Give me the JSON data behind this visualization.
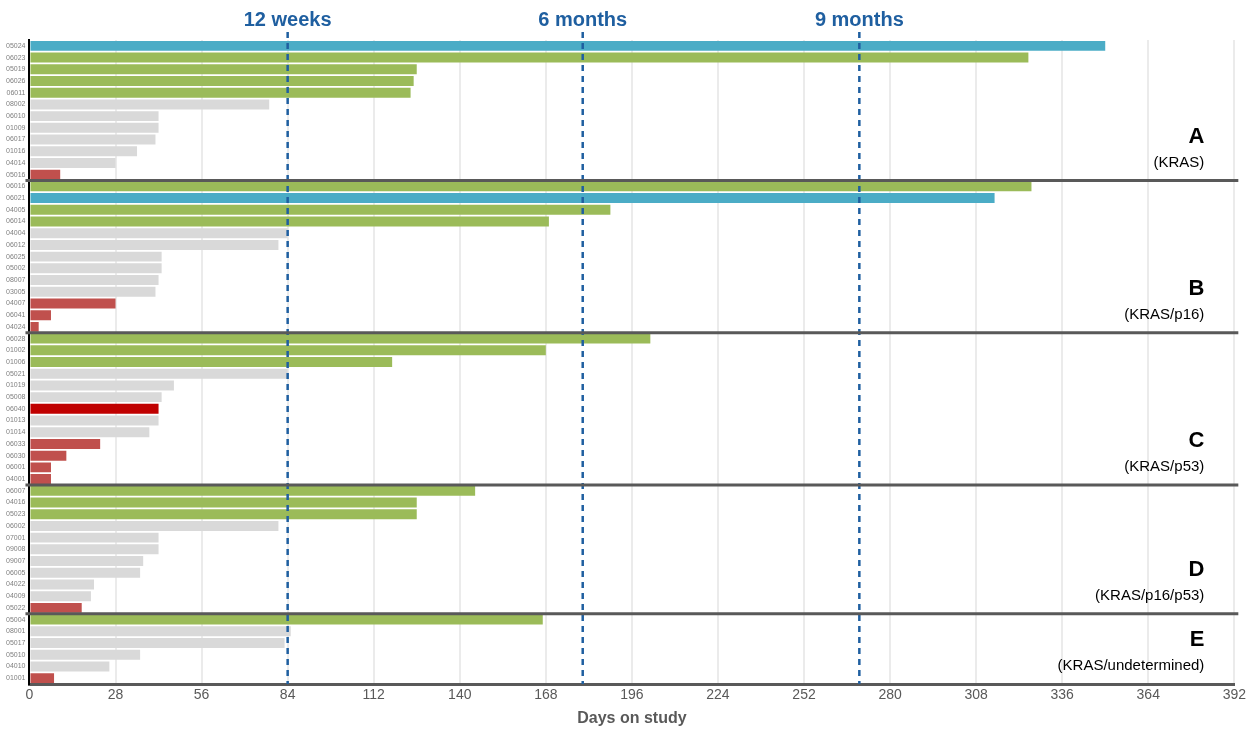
{
  "chart_data": {
    "type": "bar",
    "orientation": "horizontal",
    "xlabel": "Days on study",
    "categories": [
      "05024",
      "06023",
      "05019",
      "06026",
      "06011",
      "08002",
      "06010",
      "01009",
      "06017",
      "01016",
      "04014",
      "05016",
      "06016",
      "06021",
      "04005",
      "06014",
      "04004",
      "06012",
      "06025",
      "05002",
      "08007",
      "03005",
      "04007",
      "06041",
      "04024",
      "06028",
      "01002",
      "01006",
      "05021",
      "01019",
      "05008",
      "06040",
      "01013",
      "01014",
      "06033",
      "06030",
      "06001",
      "04001",
      "06007",
      "04016",
      "05023",
      "06002",
      "07001",
      "09008",
      "09007",
      "06005",
      "04022",
      "04009",
      "05022",
      "05004",
      "08001",
      "05017",
      "05010",
      "04010",
      "01001"
    ],
    "values": [
      350,
      325,
      126,
      125,
      124,
      78,
      42,
      42,
      41,
      35,
      28,
      10,
      326,
      314,
      189,
      169,
      84,
      81,
      43,
      43,
      42,
      41,
      28,
      7,
      3,
      202,
      168,
      118,
      84,
      47,
      43,
      42,
      42,
      39,
      23,
      12,
      7,
      7,
      145,
      126,
      126,
      81,
      42,
      42,
      37,
      36,
      21,
      20,
      17,
      167,
      85,
      83,
      36,
      26,
      8
    ],
    "colors": [
      "#4bacc6",
      "#9bbb59",
      "#9bbb59",
      "#9bbb59",
      "#9bbb59",
      "#d9d9d9",
      "#d9d9d9",
      "#d9d9d9",
      "#d9d9d9",
      "#d9d9d9",
      "#d9d9d9",
      "#c0504d",
      "#9bbb59",
      "#4bacc6",
      "#9bbb59",
      "#9bbb59",
      "#d9d9d9",
      "#d9d9d9",
      "#d9d9d9",
      "#d9d9d9",
      "#d9d9d9",
      "#d9d9d9",
      "#c0504d",
      "#c0504d",
      "#c0504d",
      "#9bbb59",
      "#9bbb59",
      "#9bbb59",
      "#d9d9d9",
      "#d9d9d9",
      "#d9d9d9",
      "#c00000",
      "#d9d9d9",
      "#d9d9d9",
      "#c0504d",
      "#c0504d",
      "#c0504d",
      "#c0504d",
      "#9bbb59",
      "#9bbb59",
      "#9bbb59",
      "#d9d9d9",
      "#d9d9d9",
      "#d9d9d9",
      "#d9d9d9",
      "#d9d9d9",
      "#d9d9d9",
      "#d9d9d9",
      "#c0504d",
      "#9bbb59",
      "#d9d9d9",
      "#d9d9d9",
      "#d9d9d9",
      "#d9d9d9",
      "#c0504d"
    ],
    "xlim": [
      0,
      392
    ],
    "xticks": [
      0,
      28,
      56,
      84,
      112,
      140,
      168,
      196,
      224,
      252,
      280,
      308,
      336,
      364,
      392
    ],
    "grid": "x",
    "legend": false,
    "ref_lines": [
      {
        "axis": "x",
        "value": 84,
        "label": "12 weeks",
        "color": "#1f5fa0",
        "line_style": "dashed"
      },
      {
        "axis": "x",
        "value": 180,
        "label": "6 months",
        "color": "#1f5fa0",
        "line_style": "dashed"
      },
      {
        "axis": "x",
        "value": 270,
        "label": "9 months",
        "color": "#1f5fa0",
        "line_style": "dashed"
      },
      {
        "axis": "y",
        "value": "05016",
        "color": "#595959",
        "line_style": "solid"
      },
      {
        "axis": "y",
        "value": "04024",
        "color": "#595959",
        "line_style": "solid"
      },
      {
        "axis": "y",
        "value": "04001",
        "color": "#595959",
        "line_style": "solid"
      },
      {
        "axis": "y",
        "value": "05022",
        "color": "#595959",
        "line_style": "solid"
      }
    ],
    "annotations": [
      "A",
      "(KRAS)",
      "B",
      "(KRAS/p16)",
      "C",
      "(KRAS/p53)",
      "D",
      "(KRAS/p16/p53)",
      "E",
      "(KRAS/undetermined)"
    ]
  }
}
